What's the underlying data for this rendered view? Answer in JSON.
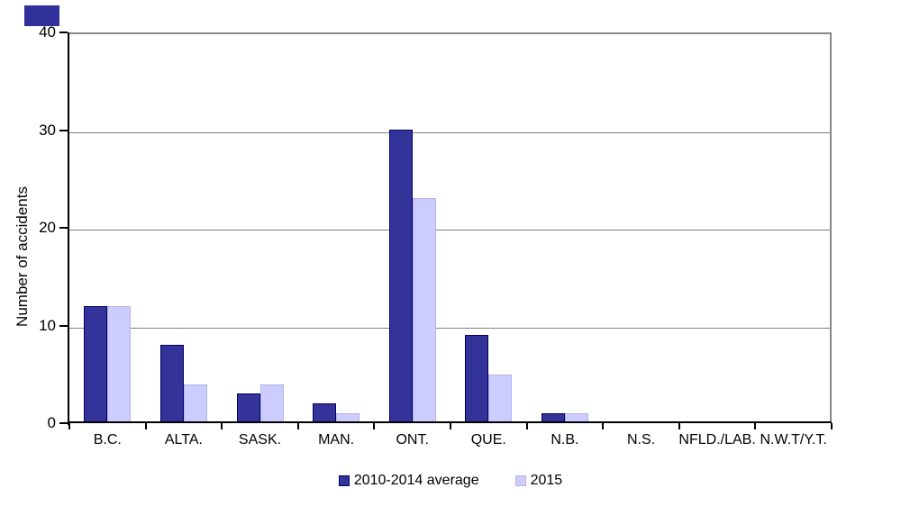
{
  "chart_data": {
    "type": "bar",
    "title": "",
    "xlabel": "",
    "ylabel": "Number of accidents",
    "categories": [
      "B.C.",
      "ALTA.",
      "SASK.",
      "MAN.",
      "ONT.",
      "QUE.",
      "N.B.",
      "N.S.",
      "NFLD./LAB.",
      "N.W.T/Y.T."
    ],
    "series": [
      {
        "name": "2010-2014 average",
        "color": "#333399",
        "border": "#000066",
        "values": [
          12,
          8,
          3,
          2,
          30,
          9,
          1,
          0.2,
          0,
          0
        ]
      },
      {
        "name": "2015",
        "color": "#CCCCFF",
        "border": "#B3B3E6",
        "values": [
          12,
          4,
          4,
          1,
          23,
          5,
          1,
          0,
          0,
          0
        ]
      }
    ],
    "ylim": [
      0,
      40
    ],
    "yticks": [
      0,
      10,
      20,
      30,
      40
    ],
    "grid": "horizontal",
    "legend_position": "bottom"
  },
  "colors": {
    "background": "#FFFFFF",
    "gridline": "#808080",
    "plot_border": "#888888",
    "axis": "#000000",
    "corner_mark": "#31319B"
  }
}
